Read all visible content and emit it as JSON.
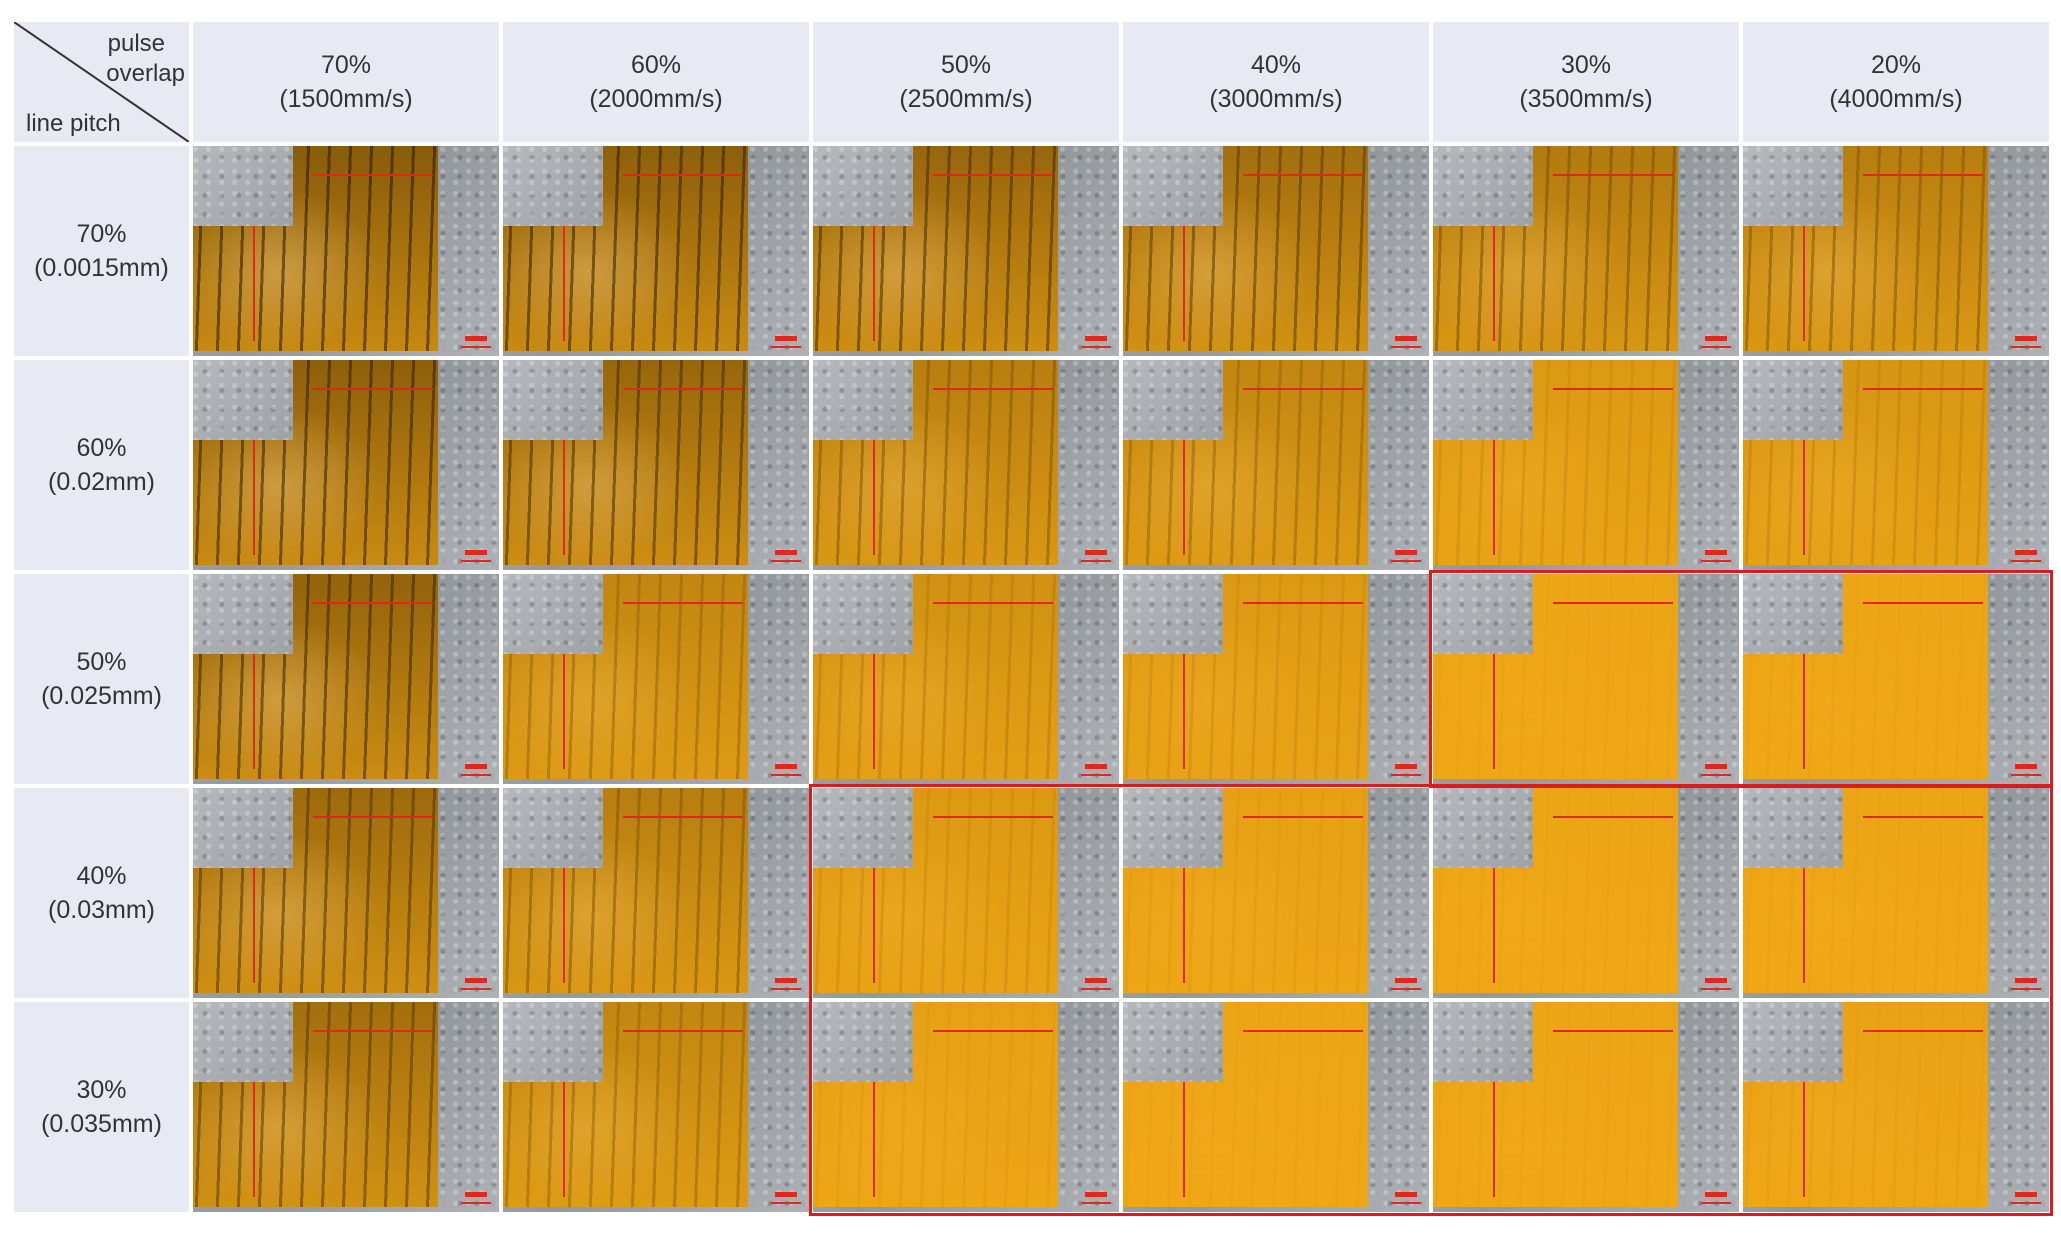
{
  "corner": {
    "top_label_line1": "pulse",
    "top_label_line2": "overlap",
    "bottom_label": "line pitch"
  },
  "columns": [
    {
      "overlap": "70%",
      "speed": "(1500mm/s)"
    },
    {
      "overlap": "60%",
      "speed": "(2000mm/s)"
    },
    {
      "overlap": "50%",
      "speed": "(2500mm/s)"
    },
    {
      "overlap": "40%",
      "speed": "(3000mm/s)"
    },
    {
      "overlap": "30%",
      "speed": "(3500mm/s)"
    },
    {
      "overlap": "20%",
      "speed": "(4000mm/s)"
    }
  ],
  "rows": [
    {
      "overlap": "70%",
      "pitch": "(0.0015mm)"
    },
    {
      "overlap": "60%",
      "pitch": "(0.02mm)"
    },
    {
      "overlap": "50%",
      "pitch": "(0.025mm)"
    },
    {
      "overlap": "40%",
      "pitch": "(0.03mm)"
    },
    {
      "overlap": "30%",
      "pitch": "(0.035mm)"
    }
  ],
  "burn_levels": [
    [
      1.0,
      0.95,
      0.85,
      0.75,
      0.6,
      0.55
    ],
    [
      0.95,
      0.85,
      0.55,
      0.45,
      0.2,
      0.25
    ],
    [
      0.9,
      0.45,
      0.3,
      0.2,
      0.05,
      0.05
    ],
    [
      0.8,
      0.55,
      0.2,
      0.1,
      0.05,
      0.05
    ],
    [
      0.75,
      0.45,
      0.1,
      0.05,
      0.05,
      0.08
    ]
  ],
  "colors": {
    "header_bg": "#e7eaf2",
    "coating": "#f2a916",
    "highlight_box": "#e0191c"
  }
}
